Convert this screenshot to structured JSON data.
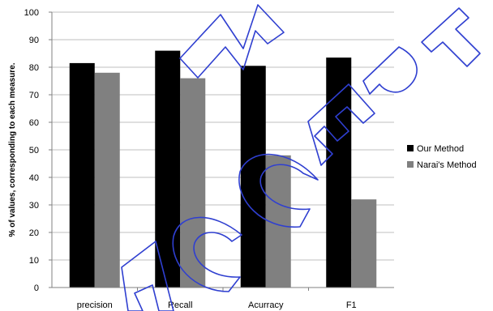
{
  "chart_data": {
    "type": "bar",
    "title": "",
    "xlabel": "",
    "ylabel": "% of values, corresponding to each measure.",
    "categories": [
      "precision",
      "Recall",
      "Acurracy",
      "F1"
    ],
    "series": [
      {
        "name": "Our Method",
        "values": [
          81.5,
          86,
          80.5,
          83.5
        ],
        "color": "#000000"
      },
      {
        "name": "Narai's Method",
        "values": [
          78,
          76,
          48,
          32
        ],
        "color": "#808080"
      }
    ],
    "ylim": [
      0,
      100
    ],
    "yticks": [
      0,
      10,
      20,
      30,
      40,
      50,
      60,
      70,
      80,
      90,
      100
    ],
    "grid": true,
    "legend_position": "right"
  },
  "watermark": {
    "text": "ACCEPTED MANUSCRIPT",
    "color": "#2f3fd0"
  }
}
